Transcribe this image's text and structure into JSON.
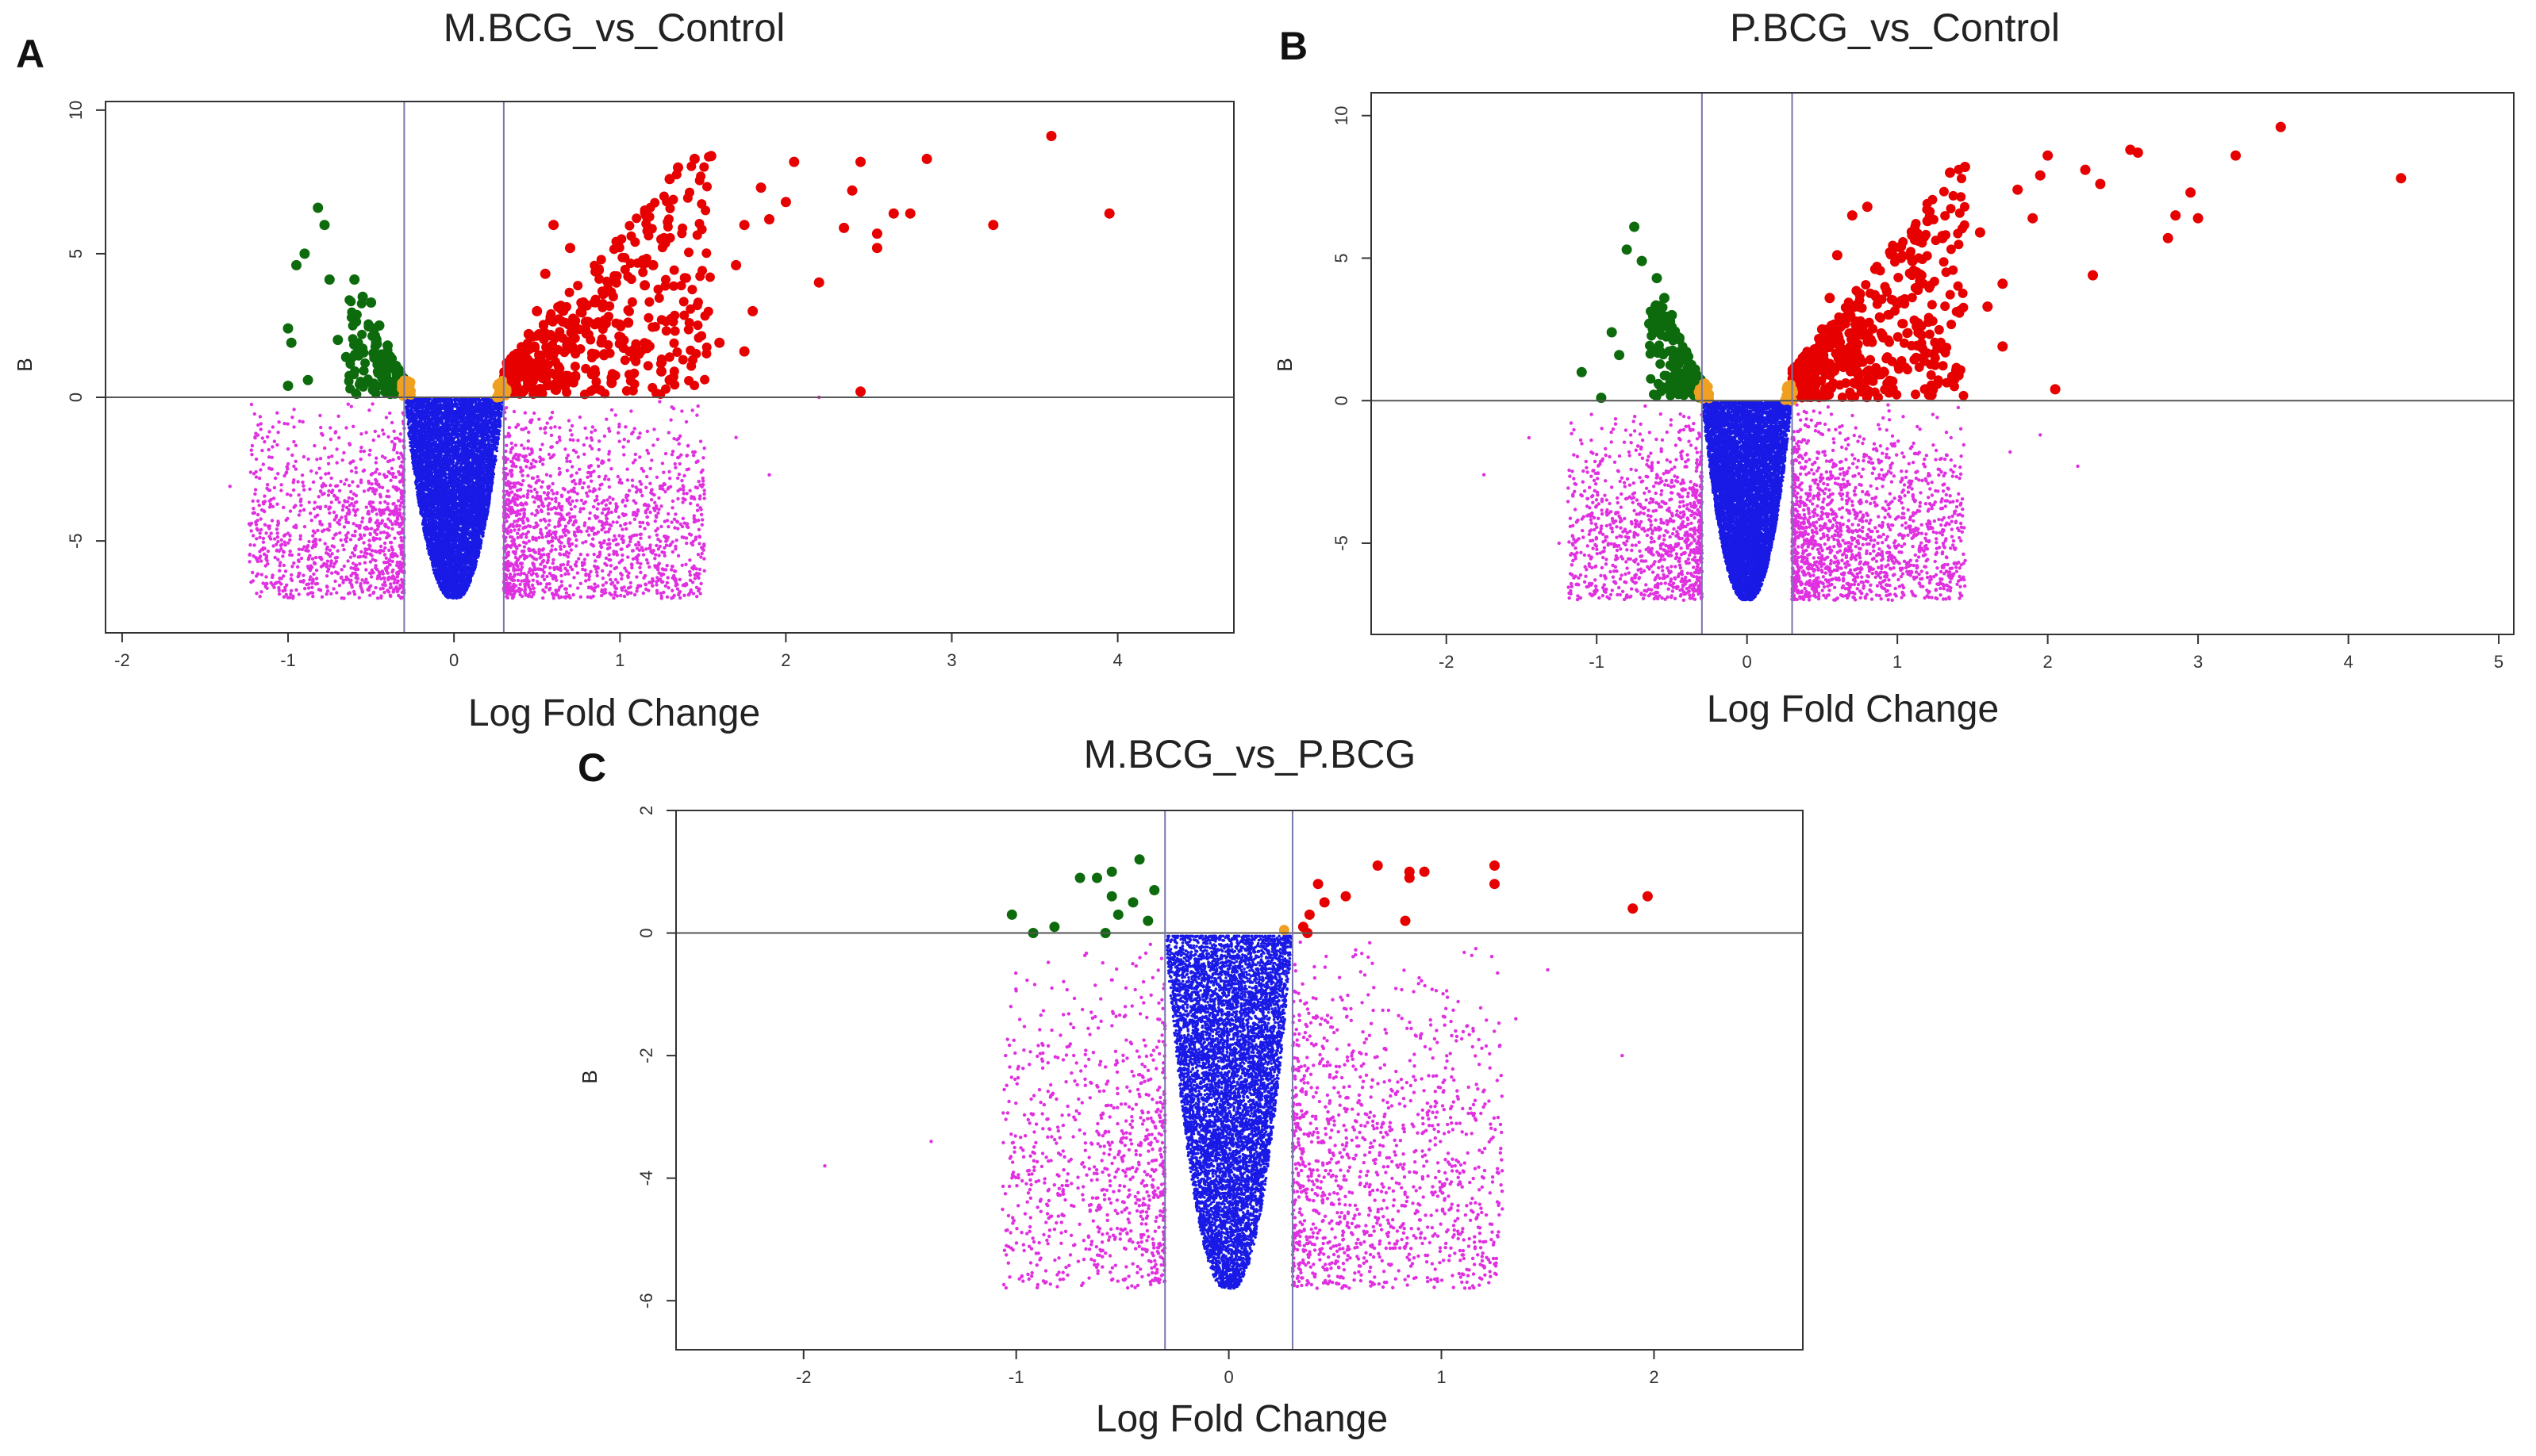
{
  "colors": {
    "up": "#e60000",
    "down": "#0d6b0d",
    "borderline": "#f0a020",
    "nonsig_fc": "#e030e0",
    "nonsig": "#1a1ae6"
  },
  "chart_data": [
    {
      "type": "scatter",
      "panel": "A",
      "title": "M.BCG_vs_Control",
      "xlabel": "Log Fold Change",
      "ylabel": "B",
      "xlim": [
        -2.1,
        4.7
      ],
      "ylim": [
        -8.2,
        10.3
      ],
      "xticks": [
        -2,
        -1,
        0,
        1,
        2,
        3,
        4
      ],
      "yticks": [
        -5,
        0,
        5,
        10
      ],
      "hline": 0,
      "vlines": [
        -0.3,
        0.3
      ],
      "series": [
        {
          "color_key": "up",
          "points": [
            [
              3.6,
              9.1
            ],
            [
              3.95,
              6.4
            ],
            [
              3.25,
              6.0
            ],
            [
              2.85,
              8.3
            ],
            [
              2.75,
              6.4
            ],
            [
              2.65,
              6.4
            ],
            [
              2.45,
              8.2
            ],
            [
              2.55,
              5.7
            ],
            [
              2.55,
              5.2
            ],
            [
              2.4,
              7.2
            ],
            [
              2.35,
              5.9
            ],
            [
              2.2,
              4.0
            ],
            [
              2.45,
              0.2
            ],
            [
              2.05,
              8.2
            ],
            [
              2.0,
              6.8
            ],
            [
              1.9,
              6.2
            ],
            [
              1.85,
              7.3
            ],
            [
              1.75,
              6.0
            ],
            [
              1.7,
              4.6
            ],
            [
              1.8,
              3.0
            ],
            [
              1.75,
              1.6
            ],
            [
              1.6,
              1.9
            ],
            [
              1.55,
              8.4
            ],
            [
              1.45,
              8.3
            ],
            [
              1.35,
              8.0
            ],
            [
              1.3,
              7.6
            ],
            [
              1.25,
              5.5
            ],
            [
              1.2,
              4.6
            ],
            [
              1.15,
              3.9
            ],
            [
              1.05,
              2.6
            ],
            [
              1.3,
              0.6
            ],
            [
              1.25,
              0.9
            ],
            [
              0.95,
              0.5
            ],
            [
              0.85,
              1.5
            ],
            [
              0.8,
              3.2
            ],
            [
              0.7,
              5.2
            ],
            [
              0.6,
              6.0
            ],
            [
              0.55,
              4.3
            ],
            [
              0.5,
              3.0
            ],
            [
              0.45,
              2.2
            ],
            [
              0.4,
              1.4
            ],
            [
              0.35,
              0.6
            ]
          ]
        },
        {
          "color_key": "down",
          "points": [
            [
              -0.82,
              6.6
            ],
            [
              -0.78,
              6.0
            ],
            [
              -0.95,
              4.6
            ],
            [
              -0.9,
              5.0
            ],
            [
              -0.75,
              4.1
            ],
            [
              -0.6,
              4.1
            ],
            [
              -0.55,
              3.5
            ],
            [
              -0.5,
              3.3
            ],
            [
              -1.0,
              2.4
            ],
            [
              -0.98,
              1.9
            ],
            [
              -0.88,
              0.6
            ],
            [
              -1.0,
              0.4
            ],
            [
              -0.7,
              2.0
            ],
            [
              -0.65,
              1.4
            ],
            [
              -0.45,
              2.5
            ],
            [
              -0.4,
              1.8
            ],
            [
              -0.35,
              1.1
            ]
          ]
        },
        {
          "color_key": "borderline",
          "points": [
            [
              -0.3,
              0.1
            ],
            [
              -0.28,
              0.4
            ],
            [
              0.28,
              0.5
            ],
            [
              0.3,
              0.1
            ],
            [
              0.26,
              0.0
            ]
          ]
        }
      ],
      "density": {
        "up": 420,
        "down": 150,
        "borderline": 30,
        "nonsig_fc": 2600,
        "nonsig": 9000,
        "xmax_up": 1.55,
        "xmin_down": -0.65,
        "ymin": -7.0,
        "xspread": 1.1
      },
      "outliers": [
        [
          -1.35,
          -3.1
        ],
        [
          -1.05,
          -6.3
        ],
        [
          1.7,
          -1.4
        ],
        [
          1.9,
          -2.7
        ],
        [
          2.2,
          0.0
        ],
        [
          1.25,
          -4.5
        ],
        [
          -1.0,
          -1.8
        ]
      ]
    },
    {
      "type": "scatter",
      "panel": "B",
      "title": "P.BCG_vs_Control",
      "xlabel": "Log Fold Change",
      "ylabel": "B",
      "xlim": [
        -2.5,
        5.1
      ],
      "ylim": [
        -8.2,
        10.8
      ],
      "xticks": [
        -2,
        -1,
        0,
        1,
        2,
        3,
        4,
        5
      ],
      "yticks": [
        -5,
        0,
        5,
        10
      ],
      "hline": 0,
      "vlines": [
        -0.3,
        0.3
      ],
      "series": [
        {
          "color_key": "up",
          "points": [
            [
              3.55,
              9.6
            ],
            [
              4.35,
              7.8
            ],
            [
              3.25,
              8.6
            ],
            [
              2.95,
              7.3
            ],
            [
              3.0,
              6.4
            ],
            [
              2.85,
              6.5
            ],
            [
              2.8,
              5.7
            ],
            [
              2.6,
              8.7
            ],
            [
              2.55,
              8.8
            ],
            [
              2.35,
              7.6
            ],
            [
              2.25,
              8.1
            ],
            [
              2.3,
              4.4
            ],
            [
              2.0,
              8.6
            ],
            [
              2.05,
              0.4
            ],
            [
              1.95,
              7.9
            ],
            [
              1.9,
              6.4
            ],
            [
              1.8,
              7.4
            ],
            [
              1.7,
              4.1
            ],
            [
              1.7,
              1.9
            ],
            [
              1.6,
              3.3
            ],
            [
              1.55,
              5.9
            ],
            [
              1.45,
              8.2
            ],
            [
              1.35,
              8.0
            ],
            [
              1.3,
              5.7
            ],
            [
              1.2,
              6.3
            ],
            [
              1.1,
              4.9
            ],
            [
              1.0,
              3.4
            ],
            [
              0.9,
              2.3
            ],
            [
              0.95,
              0.7
            ],
            [
              0.8,
              6.8
            ],
            [
              0.7,
              6.5
            ],
            [
              0.6,
              5.1
            ],
            [
              0.55,
              3.6
            ],
            [
              0.5,
              2.5
            ],
            [
              0.45,
              1.8
            ],
            [
              0.4,
              1.1
            ]
          ]
        },
        {
          "color_key": "down",
          "points": [
            [
              -0.75,
              6.1
            ],
            [
              -0.8,
              5.3
            ],
            [
              -0.7,
              4.9
            ],
            [
              -0.6,
              4.3
            ],
            [
              -0.55,
              3.6
            ],
            [
              -0.9,
              2.4
            ],
            [
              -1.1,
              1.0
            ],
            [
              -0.97,
              0.1
            ],
            [
              -0.85,
              1.6
            ],
            [
              -0.65,
              2.7
            ],
            [
              -0.5,
              3.0
            ],
            [
              -0.45,
              2.2
            ],
            [
              -0.4,
              1.4
            ],
            [
              -0.35,
              0.7
            ]
          ]
        },
        {
          "color_key": "borderline",
          "points": [
            [
              -0.32,
              0.3
            ],
            [
              -0.28,
              0.6
            ],
            [
              0.27,
              0.5
            ],
            [
              0.3,
              0.0
            ]
          ]
        }
      ],
      "density": {
        "up": 460,
        "down": 160,
        "borderline": 30,
        "nonsig_fc": 2600,
        "nonsig": 9000,
        "xmax_up": 1.45,
        "xmin_down": -0.65,
        "ymin": -7.0,
        "xspread": 1.05
      },
      "outliers": [
        [
          -1.45,
          -1.3
        ],
        [
          -1.75,
          -2.6
        ],
        [
          -1.25,
          -5.0
        ],
        [
          1.75,
          -1.8
        ],
        [
          2.2,
          -2.3
        ],
        [
          1.2,
          -6.2
        ],
        [
          1.95,
          -1.2
        ]
      ]
    },
    {
      "type": "scatter",
      "panel": "C",
      "title": "M.BCG_vs_P.BCG",
      "xlabel": "Log Fold Change",
      "ylabel": "B",
      "xlim": [
        -2.6,
        2.7
      ],
      "ylim": [
        -6.8,
        2.0
      ],
      "xticks": [
        -2,
        -1,
        0,
        1,
        2
      ],
      "yticks": [
        -6,
        -4,
        -2,
        0,
        2
      ],
      "hline": 0,
      "vlines": [
        -0.3,
        0.3
      ],
      "series": [
        {
          "color_key": "up",
          "points": [
            [
              1.97,
              0.6
            ],
            [
              1.9,
              0.4
            ],
            [
              1.25,
              1.1
            ],
            [
              1.25,
              0.8
            ],
            [
              0.92,
              1.0
            ],
            [
              0.85,
              1.0
            ],
            [
              0.85,
              0.9
            ],
            [
              0.83,
              0.2
            ],
            [
              0.7,
              1.1
            ],
            [
              0.55,
              0.6
            ],
            [
              0.45,
              0.5
            ],
            [
              0.42,
              0.8
            ],
            [
              0.38,
              0.3
            ],
            [
              0.35,
              0.1
            ],
            [
              0.37,
              0.0
            ]
          ]
        },
        {
          "color_key": "down",
          "points": [
            [
              -1.02,
              0.3
            ],
            [
              -0.92,
              0.0
            ],
            [
              -0.82,
              0.1
            ],
            [
              -0.7,
              0.9
            ],
            [
              -0.62,
              0.9
            ],
            [
              -0.55,
              1.0
            ],
            [
              -0.42,
              1.2
            ],
            [
              -0.55,
              0.6
            ],
            [
              -0.52,
              0.3
            ],
            [
              -0.45,
              0.5
            ],
            [
              -0.38,
              0.2
            ],
            [
              -0.58,
              0.0
            ],
            [
              -0.35,
              0.7
            ]
          ]
        },
        {
          "color_key": "borderline",
          "points": [
            [
              0.26,
              0.05
            ]
          ]
        }
      ],
      "density": {
        "up": 0,
        "down": 0,
        "borderline": 0,
        "nonsig_fc": 2200,
        "nonsig": 8000,
        "xmax_up": 1.2,
        "xmin_down": -1.1,
        "ymin": -5.8,
        "xspread": 0.9
      },
      "outliers": [
        [
          -1.9,
          -3.8
        ],
        [
          -1.4,
          -3.4
        ],
        [
          1.5,
          -0.6
        ],
        [
          1.85,
          -2.0
        ],
        [
          1.35,
          -1.4
        ],
        [
          1.15,
          -1.6
        ],
        [
          -1.05,
          -2.0
        ]
      ]
    }
  ]
}
